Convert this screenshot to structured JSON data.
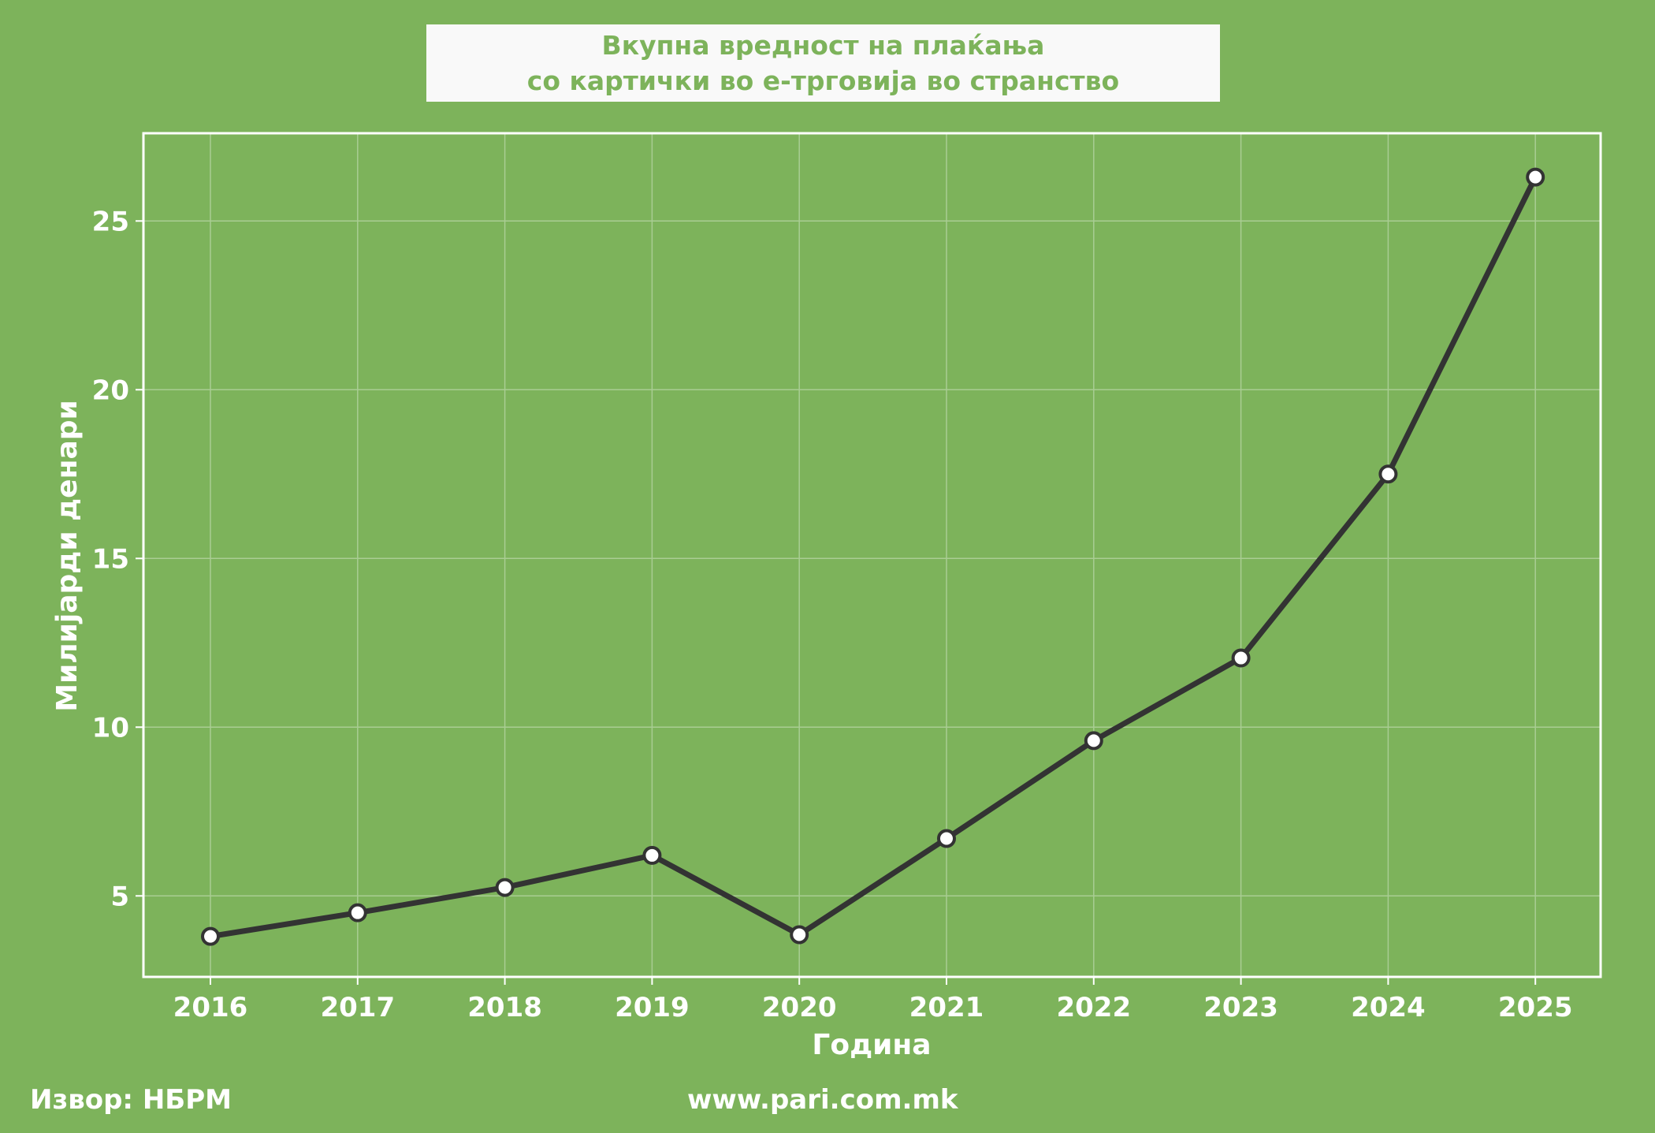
{
  "chart_data": {
    "type": "line",
    "title_line1": "Вкупна вредност на плаќања",
    "title_line2": "со картички во е-трговија во странство",
    "xlabel": "Година",
    "ylabel": "Милијарди денари",
    "x": [
      "2016",
      "2017",
      "2018",
      "2019",
      "2020",
      "2021",
      "2022",
      "2023",
      "2024",
      "2025"
    ],
    "values": [
      3.8,
      4.5,
      5.25,
      6.2,
      3.85,
      6.7,
      9.6,
      12.05,
      17.5,
      26.3
    ],
    "yticks": [
      5,
      10,
      15,
      20,
      25
    ],
    "ylim": [
      2.6,
      27.6
    ],
    "grid": true,
    "colors": {
      "background": "#7db35b",
      "line": "#333333",
      "marker_fill": "#ffffff",
      "grid": "#a9cd93",
      "frame": "#ffffff",
      "title_text": "#7db35b",
      "title_box": "#f9f9f9"
    }
  },
  "footer": {
    "source": "Извор: НБРМ",
    "site": "www.pari.com.mk"
  }
}
